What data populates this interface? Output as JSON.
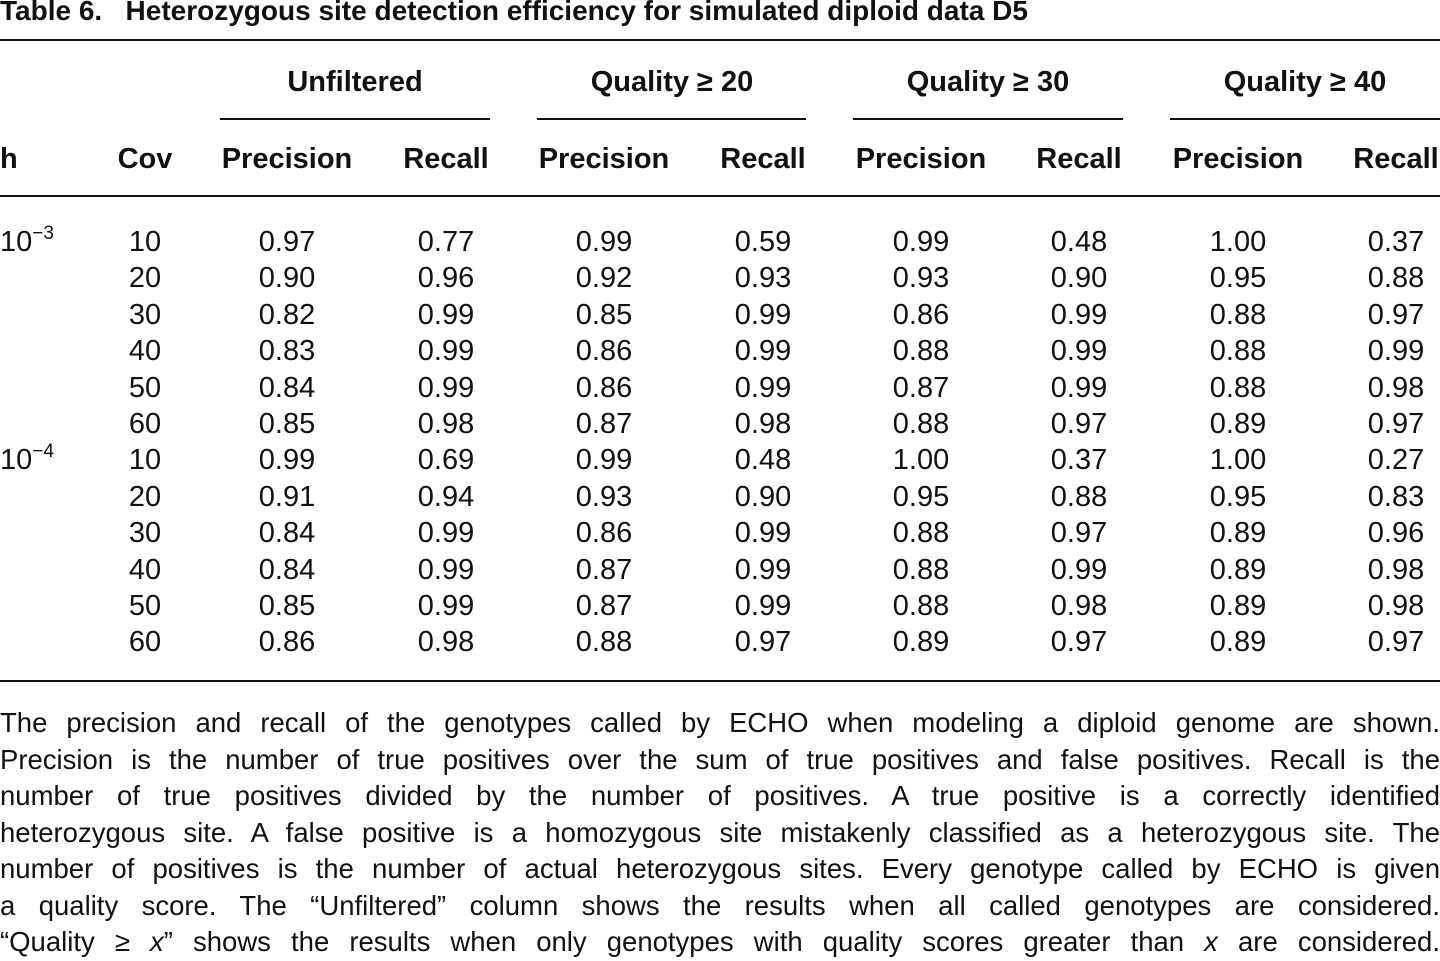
{
  "caption": {
    "label": "Table 6.",
    "title": "Heterozygous site detection efficiency for simulated diploid data D5"
  },
  "table": {
    "groups": [
      "Unfiltered",
      "Quality ≥ 20",
      "Quality ≥ 30",
      "Quality ≥ 40"
    ],
    "columns": [
      "h",
      "Cov",
      "Precision",
      "Recall",
      "Precision",
      "Recall",
      "Precision",
      "Recall",
      "Precision",
      "Recall"
    ],
    "rows": [
      {
        "h": {
          "base": "10",
          "exp": "−3"
        },
        "cov": "10",
        "cells": [
          "0.97",
          "0.77",
          "0.99",
          "0.59",
          "0.99",
          "0.48",
          "1.00",
          "0.37"
        ]
      },
      {
        "h": null,
        "cov": "20",
        "cells": [
          "0.90",
          "0.96",
          "0.92",
          "0.93",
          "0.93",
          "0.90",
          "0.95",
          "0.88"
        ]
      },
      {
        "h": null,
        "cov": "30",
        "cells": [
          "0.82",
          "0.99",
          "0.85",
          "0.99",
          "0.86",
          "0.99",
          "0.88",
          "0.97"
        ]
      },
      {
        "h": null,
        "cov": "40",
        "cells": [
          "0.83",
          "0.99",
          "0.86",
          "0.99",
          "0.88",
          "0.99",
          "0.88",
          "0.99"
        ]
      },
      {
        "h": null,
        "cov": "50",
        "cells": [
          "0.84",
          "0.99",
          "0.86",
          "0.99",
          "0.87",
          "0.99",
          "0.88",
          "0.98"
        ]
      },
      {
        "h": null,
        "cov": "60",
        "cells": [
          "0.85",
          "0.98",
          "0.87",
          "0.98",
          "0.88",
          "0.97",
          "0.89",
          "0.97"
        ]
      },
      {
        "h": {
          "base": "10",
          "exp": "−4"
        },
        "cov": "10",
        "cells": [
          "0.99",
          "0.69",
          "0.99",
          "0.48",
          "1.00",
          "0.37",
          "1.00",
          "0.27"
        ]
      },
      {
        "h": null,
        "cov": "20",
        "cells": [
          "0.91",
          "0.94",
          "0.93",
          "0.90",
          "0.95",
          "0.88",
          "0.95",
          "0.83"
        ]
      },
      {
        "h": null,
        "cov": "30",
        "cells": [
          "0.84",
          "0.99",
          "0.86",
          "0.99",
          "0.88",
          "0.97",
          "0.89",
          "0.96"
        ]
      },
      {
        "h": null,
        "cov": "40",
        "cells": [
          "0.84",
          "0.99",
          "0.87",
          "0.99",
          "0.88",
          "0.99",
          "0.89",
          "0.98"
        ]
      },
      {
        "h": null,
        "cov": "50",
        "cells": [
          "0.85",
          "0.99",
          "0.87",
          "0.99",
          "0.88",
          "0.98",
          "0.89",
          "0.98"
        ]
      },
      {
        "h": null,
        "cov": "60",
        "cells": [
          "0.86",
          "0.98",
          "0.88",
          "0.97",
          "0.89",
          "0.97",
          "0.89",
          "0.97"
        ]
      }
    ]
  },
  "footnote": [
    [
      "The precision and recall of the genotypes called by ECHO when modeling a diploid genome are shown."
    ],
    [
      "Precision is the number of true positives over the sum of true positives and false positives. Recall is the"
    ],
    [
      "number of true positives divided by the number of positives. A true positive is a correctly identified"
    ],
    [
      "heterozygous site. A false positive is a homozygous site mistakenly classified as a heterozygous site. The"
    ],
    [
      "number of positives is the number of actual heterozygous sites. Every genotype called by ECHO is given"
    ],
    [
      "a quality score. The “Unfiltered” column shows the results when all called genotypes are considered."
    ],
    [
      "“Quality ≥ ",
      "x",
      "” shows the results when only genotypes with quality scores greater than ",
      "x",
      " are considered."
    ]
  ]
}
